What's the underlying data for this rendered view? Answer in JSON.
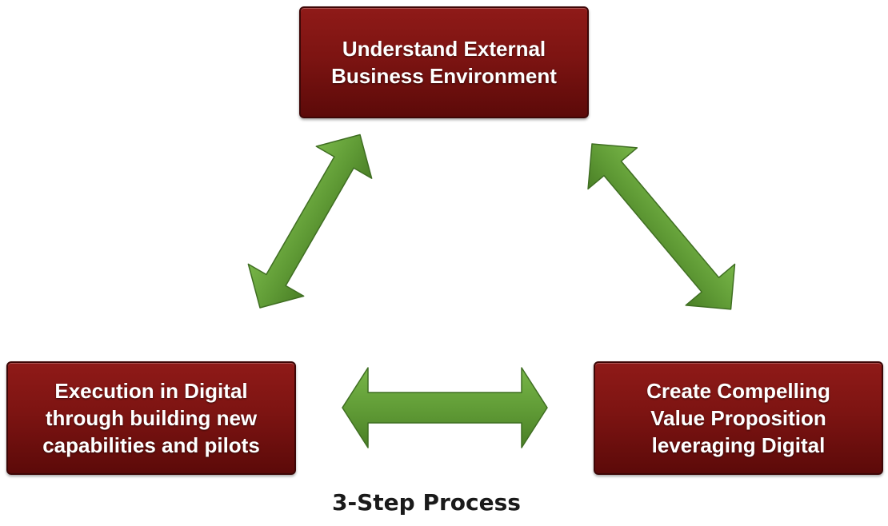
{
  "steps": {
    "top": {
      "label": "Understand External\nBusiness Environment"
    },
    "left": {
      "label": "Execution in Digital\nthrough building new\ncapabilities and pilots"
    },
    "right": {
      "label": "Create Compelling\nValue Proposition\nleveraging Digital"
    }
  },
  "caption": "3-Step Process",
  "colors": {
    "box_fill": "#7d1412",
    "box_text": "#ffffff",
    "arrow_fill": "#5f9a35",
    "arrow_outline": "#3f6e22"
  },
  "icons": {
    "arrow_type": "double-headed-arrow"
  }
}
